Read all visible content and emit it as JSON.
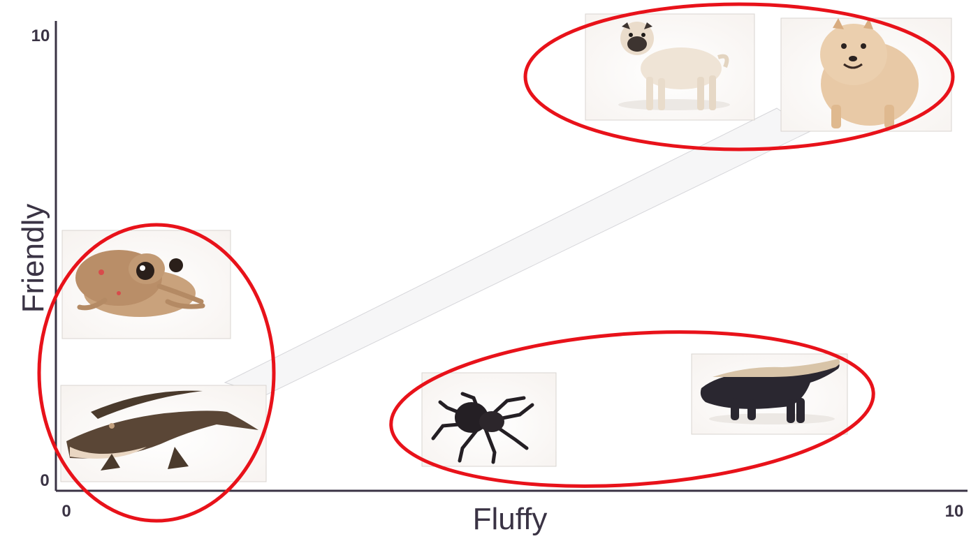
{
  "chart_data": {
    "type": "scatter",
    "xlabel": "Fluffy",
    "ylabel": "Friendly",
    "xlim": [
      0,
      10
    ],
    "ylim": [
      0,
      10
    ],
    "x_ticks": [
      "0",
      "10"
    ],
    "y_ticks": [
      "0",
      "10"
    ],
    "grid": false,
    "points": [
      {
        "icon": "pug-icon",
        "x": 6.1,
        "y": 8.8
      },
      {
        "icon": "pomeranian-icon",
        "x": 8.4,
        "y": 8.7
      },
      {
        "icon": "frog-icon",
        "x": 1.0,
        "y": 4.5
      },
      {
        "icon": "alligator-icon",
        "x": 1.3,
        "y": 1.2
      },
      {
        "icon": "tarantula-icon",
        "x": 5.5,
        "y": 1.0
      },
      {
        "icon": "honey-badger-icon",
        "x": 8.6,
        "y": 1.2
      }
    ],
    "clusters": [
      {
        "members": [
          "pug-icon",
          "pomeranian-icon"
        ],
        "color": "#e8121a"
      },
      {
        "members": [
          "frog-icon",
          "alligator-icon"
        ],
        "color": "#e8121a"
      },
      {
        "members": [
          "tarantula-icon",
          "honey-badger-icon"
        ],
        "color": "#e8121a"
      }
    ],
    "colors": {
      "axis": "#3a3344",
      "cluster": "#e8121a"
    }
  }
}
